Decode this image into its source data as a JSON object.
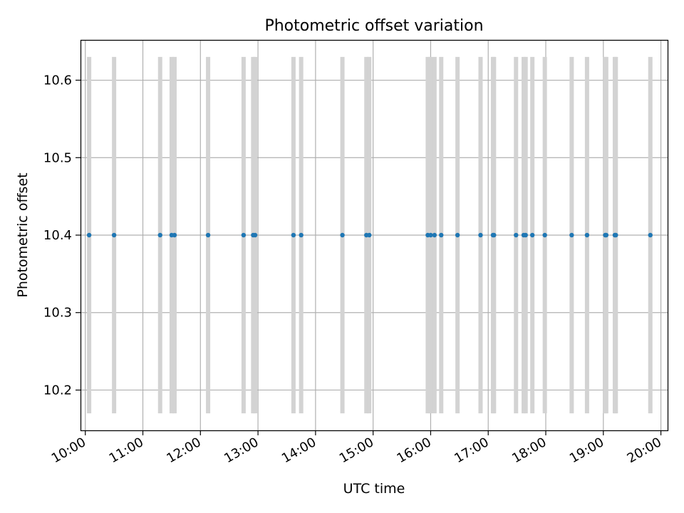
{
  "chart_data": {
    "type": "scatter",
    "title": "Photometric offset variation",
    "xlabel": "UTC time",
    "ylabel": "Photometric offset",
    "x_axis_type": "time",
    "xlim": [
      "09:55",
      "20:07"
    ],
    "ylim": [
      10.148,
      10.652
    ],
    "grid": true,
    "x_ticks": [
      "10:00",
      "11:00",
      "12:00",
      "13:00",
      "14:00",
      "15:00",
      "16:00",
      "17:00",
      "18:00",
      "19:00",
      "20:00"
    ],
    "y_ticks": [
      "10.2",
      "10.3",
      "10.4",
      "10.5",
      "10.6"
    ],
    "error_bar_range": [
      10.17,
      10.63
    ],
    "series": [
      {
        "marker_color": "#1f77b4",
        "errorbar_color": "#d3d3d3",
        "points": [
          {
            "x": "10:04",
            "y": 10.4
          },
          {
            "x": "10:30",
            "y": 10.4
          },
          {
            "x": "11:18",
            "y": 10.4
          },
          {
            "x": "11:30",
            "y": 10.4
          },
          {
            "x": "11:33",
            "y": 10.4
          },
          {
            "x": "12:08",
            "y": 10.4
          },
          {
            "x": "12:45",
            "y": 10.4
          },
          {
            "x": "12:55",
            "y": 10.4
          },
          {
            "x": "12:57",
            "y": 10.4
          },
          {
            "x": "13:37",
            "y": 10.4
          },
          {
            "x": "13:45",
            "y": 10.4
          },
          {
            "x": "14:28",
            "y": 10.4
          },
          {
            "x": "14:53",
            "y": 10.4
          },
          {
            "x": "14:56",
            "y": 10.4
          },
          {
            "x": "15:57",
            "y": 10.4
          },
          {
            "x": "16:00",
            "y": 10.4
          },
          {
            "x": "16:04",
            "y": 10.4
          },
          {
            "x": "16:11",
            "y": 10.4
          },
          {
            "x": "16:28",
            "y": 10.4
          },
          {
            "x": "16:52",
            "y": 10.4
          },
          {
            "x": "17:05",
            "y": 10.4
          },
          {
            "x": "17:06",
            "y": 10.4
          },
          {
            "x": "17:29",
            "y": 10.4
          },
          {
            "x": "17:37",
            "y": 10.4
          },
          {
            "x": "17:39",
            "y": 10.4
          },
          {
            "x": "17:46",
            "y": 10.4
          },
          {
            "x": "17:59",
            "y": 10.4
          },
          {
            "x": "18:27",
            "y": 10.4
          },
          {
            "x": "18:43",
            "y": 10.4
          },
          {
            "x": "19:02",
            "y": 10.4
          },
          {
            "x": "19:03",
            "y": 10.4
          },
          {
            "x": "19:12",
            "y": 10.4
          },
          {
            "x": "19:13",
            "y": 10.4
          },
          {
            "x": "19:49",
            "y": 10.4
          }
        ]
      }
    ]
  }
}
